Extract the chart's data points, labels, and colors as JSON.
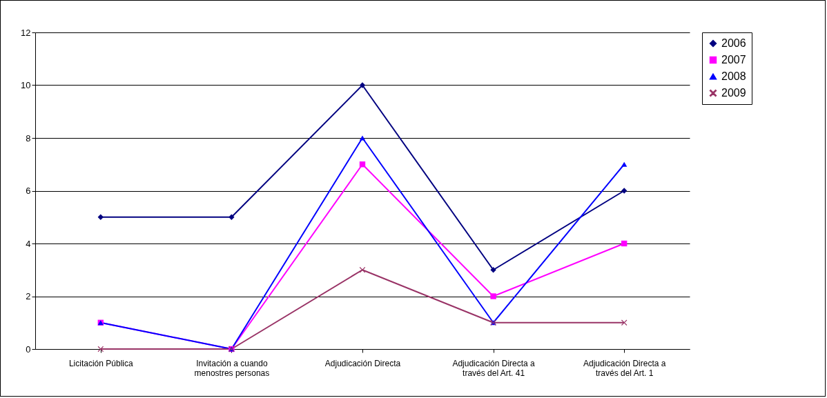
{
  "chart_data": {
    "type": "line",
    "categories": [
      "Licitación Pública",
      "Invitación a cuando menostres personas",
      "Adjudicación Directa",
      "Adjudicación Directa a través del Art. 41",
      "Adjudicación Directa a través del Art. 1"
    ],
    "series": [
      {
        "name": "2006",
        "color": "#000080",
        "marker": "diamond",
        "values": [
          5,
          5,
          10,
          3,
          6
        ]
      },
      {
        "name": "2007",
        "color": "#ff00ff",
        "marker": "square",
        "values": [
          1,
          0,
          7,
          2,
          4
        ]
      },
      {
        "name": "2008",
        "color": "#0000ff",
        "marker": "triangle",
        "values": [
          1,
          0,
          8,
          1,
          7
        ]
      },
      {
        "name": "2009",
        "color": "#993366",
        "marker": "cross",
        "values": [
          0,
          0,
          3,
          1,
          1
        ]
      }
    ],
    "ylim": [
      0,
      12
    ],
    "yticks": [
      0,
      2,
      4,
      6,
      8,
      10,
      12
    ],
    "grid": "y",
    "legend": "right",
    "line_style": "solid"
  }
}
